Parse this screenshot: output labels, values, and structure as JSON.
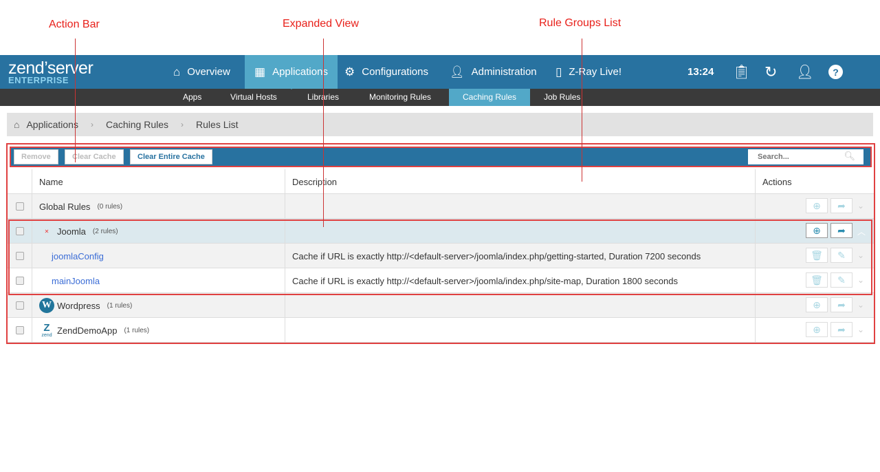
{
  "annotations": {
    "action_bar": "Action Bar",
    "expanded_view": "Expanded View",
    "rule_groups": "Rule Groups  List"
  },
  "logo": {
    "main": "zend’server",
    "sub": "ENTERPRISE"
  },
  "nav": [
    {
      "label": "Overview",
      "icon": "home-icon"
    },
    {
      "label": "Applications",
      "icon": "grid-icon",
      "active": true
    },
    {
      "label": "Configurations",
      "icon": "gears-icon"
    },
    {
      "label": "Administration",
      "icon": "user-icon"
    },
    {
      "label": "Z-Ray Live!",
      "icon": "mobile-icon"
    }
  ],
  "header_right": {
    "time": "13:24",
    "icons": [
      "clipboard-icon",
      "refresh-icon",
      "user-icon",
      "help-icon"
    ]
  },
  "subnav": [
    {
      "label": "Apps"
    },
    {
      "label": "Virtual Hosts"
    },
    {
      "label": "Libraries"
    },
    {
      "label": "Monitoring Rules"
    },
    {
      "label": "Caching Rules",
      "active": true
    },
    {
      "label": "Job Rules"
    }
  ],
  "breadcrumb": [
    "Applications",
    "Caching Rules",
    "Rules List"
  ],
  "action_bar": {
    "remove": "Remove",
    "clear_cache": "Clear Cache",
    "clear_entire": "Clear Entire Cache",
    "search_placeholder": "Search..."
  },
  "table": {
    "headers": [
      "Name",
      "Description",
      "Actions"
    ],
    "rows": [
      {
        "name": "Global Rules",
        "count": "(0 rules)",
        "description": ""
      },
      {
        "name": "Joomla",
        "count": "(2 rules)",
        "description": "",
        "expanded": true
      },
      {
        "name": "joomlaConfig",
        "description": "Cache if URL is exactly http://<default-server>/joomla/index.php/getting-started, Duration 7200 seconds"
      },
      {
        "name": "mainJoomla",
        "description": "Cache if URL is exactly http://<default-server>/joomla/index.php/site-map, Duration 1800 seconds"
      },
      {
        "name": "Wordpress",
        "count": "(1 rules)",
        "description": ""
      },
      {
        "name": "ZendDemoApp",
        "count": "(1 rules)",
        "description": "",
        "logo_text": "zend"
      }
    ]
  },
  "colors": {
    "header": "#2872a0",
    "active": "#52a8c8",
    "subnav": "#3a3a3a",
    "annotation": "#e8201a"
  }
}
